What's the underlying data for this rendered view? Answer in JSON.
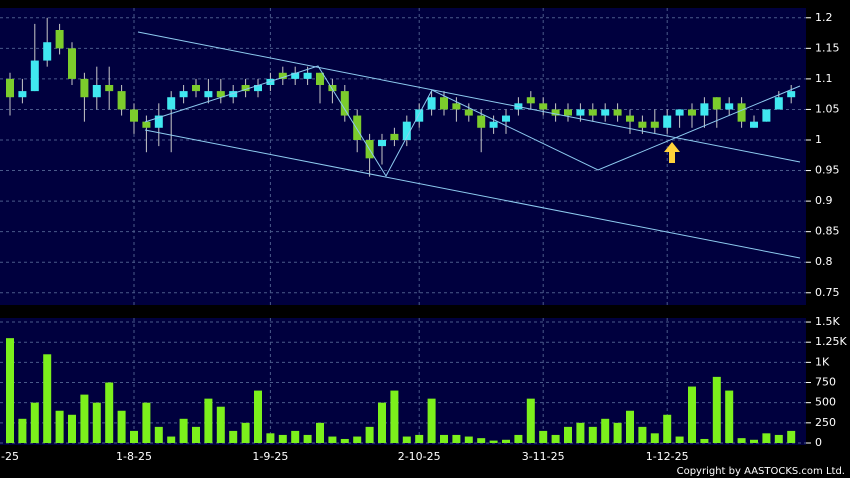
{
  "chart_data": [
    {
      "type": "candlestick",
      "categories": [
        "-25",
        null,
        null,
        null,
        null,
        null,
        null,
        null,
        null,
        null,
        "1-8-25",
        null,
        null,
        null,
        null,
        null,
        null,
        null,
        null,
        null,
        null,
        "1-9-25",
        null,
        null,
        null,
        null,
        null,
        null,
        null,
        null,
        null,
        null,
        null,
        "2-10-25",
        null,
        null,
        null,
        null,
        null,
        null,
        null,
        null,
        null,
        "3-11-25",
        null,
        null,
        null,
        null,
        null,
        null,
        null,
        null,
        null,
        "1-12-25",
        null,
        null,
        null,
        null,
        null,
        null,
        null,
        null,
        null,
        null
      ],
      "open": [
        1.1,
        1.07,
        1.08,
        1.13,
        1.18,
        1.15,
        1.1,
        1.07,
        1.09,
        1.08,
        1.05,
        1.03,
        1.02,
        1.05,
        1.07,
        1.09,
        1.07,
        1.08,
        1.07,
        1.09,
        1.08,
        1.09,
        1.11,
        1.1,
        1.1,
        1.11,
        1.09,
        1.08,
        1.04,
        1.0,
        0.99,
        1.01,
        1.0,
        1.03,
        1.05,
        1.07,
        1.06,
        1.05,
        1.04,
        1.02,
        1.03,
        1.05,
        1.07,
        1.06,
        1.05,
        1.05,
        1.04,
        1.05,
        1.04,
        1.05,
        1.04,
        1.03,
        1.03,
        1.02,
        1.04,
        1.05,
        1.04,
        1.07,
        1.05,
        1.06,
        1.02,
        1.03,
        1.05,
        1.07
      ],
      "high": [
        1.11,
        1.1,
        1.19,
        1.2,
        1.19,
        1.16,
        1.11,
        1.12,
        1.12,
        1.09,
        1.06,
        1.04,
        1.06,
        1.08,
        1.09,
        1.1,
        1.1,
        1.1,
        1.09,
        1.1,
        1.1,
        1.11,
        1.12,
        1.12,
        1.12,
        1.11,
        1.1,
        1.09,
        1.05,
        1.01,
        1.01,
        1.02,
        1.04,
        1.06,
        1.08,
        1.08,
        1.07,
        1.06,
        1.05,
        1.04,
        1.05,
        1.07,
        1.08,
        1.07,
        1.06,
        1.06,
        1.06,
        1.06,
        1.06,
        1.06,
        1.05,
        1.04,
        1.05,
        1.05,
        1.05,
        1.06,
        1.07,
        1.07,
        1.07,
        1.07,
        1.04,
        1.05,
        1.08,
        1.09
      ],
      "low": [
        1.04,
        1.06,
        1.08,
        1.12,
        1.14,
        1.09,
        1.03,
        1.05,
        1.05,
        1.04,
        1.01,
        0.98,
        0.99,
        0.98,
        1.06,
        1.07,
        1.06,
        1.06,
        1.06,
        1.07,
        1.07,
        1.08,
        1.09,
        1.09,
        1.09,
        1.06,
        1.06,
        1.03,
        0.98,
        0.94,
        0.96,
        0.99,
        0.99,
        1.02,
        1.04,
        1.04,
        1.03,
        1.03,
        0.98,
        1.01,
        1.01,
        1.04,
        1.05,
        1.04,
        1.03,
        1.03,
        1.03,
        1.03,
        1.03,
        1.03,
        1.01,
        1.01,
        1.01,
        1.01,
        1.02,
        1.02,
        1.02,
        1.02,
        1.04,
        1.02,
        1.02,
        1.03,
        1.05,
        1.06
      ],
      "close": [
        1.07,
        1.08,
        1.13,
        1.16,
        1.15,
        1.1,
        1.07,
        1.09,
        1.08,
        1.05,
        1.03,
        1.02,
        1.04,
        1.07,
        1.08,
        1.08,
        1.08,
        1.07,
        1.08,
        1.08,
        1.09,
        1.1,
        1.1,
        1.11,
        1.11,
        1.09,
        1.08,
        1.04,
        1.0,
        0.97,
        1.0,
        1.0,
        1.03,
        1.05,
        1.07,
        1.05,
        1.05,
        1.04,
        1.02,
        1.03,
        1.04,
        1.06,
        1.06,
        1.05,
        1.04,
        1.04,
        1.05,
        1.04,
        1.05,
        1.04,
        1.03,
        1.02,
        1.02,
        1.04,
        1.05,
        1.04,
        1.06,
        1.05,
        1.06,
        1.03,
        1.03,
        1.05,
        1.07,
        1.08
      ],
      "up_color": "#40e8f0",
      "down_color": "#7ccc2c",
      "ylim": [
        0.73,
        1.216
      ],
      "yticks": [
        0.75,
        0.8,
        0.85,
        0.9,
        0.95,
        1,
        1.05,
        1.1,
        1.15,
        1.2
      ],
      "grid": true
    },
    {
      "type": "bar",
      "values": [
        1300,
        300,
        500,
        1100,
        400,
        350,
        600,
        500,
        750,
        400,
        150,
        500,
        200,
        80,
        300,
        200,
        550,
        450,
        150,
        250,
        650,
        120,
        100,
        150,
        100,
        250,
        80,
        50,
        80,
        200,
        500,
        650,
        80,
        100,
        550,
        100,
        100,
        80,
        60,
        30,
        40,
        100,
        550,
        150,
        100,
        200,
        250,
        200,
        300,
        250,
        400,
        200,
        120,
        350,
        80,
        700,
        50,
        820,
        650,
        60,
        40,
        120,
        100,
        150
      ],
      "color": "#7cf01c",
      "ylim": [
        0,
        1550
      ],
      "yticks": [
        0,
        250,
        500,
        750,
        {
          "value": 1000,
          "label": "1K"
        },
        {
          "value": 1250,
          "label": "1.25K"
        },
        {
          "value": 1500,
          "label": "1.5K"
        }
      ],
      "grid": true
    }
  ],
  "copyright": "Copyright by AASTOCKS.com Ltd."
}
